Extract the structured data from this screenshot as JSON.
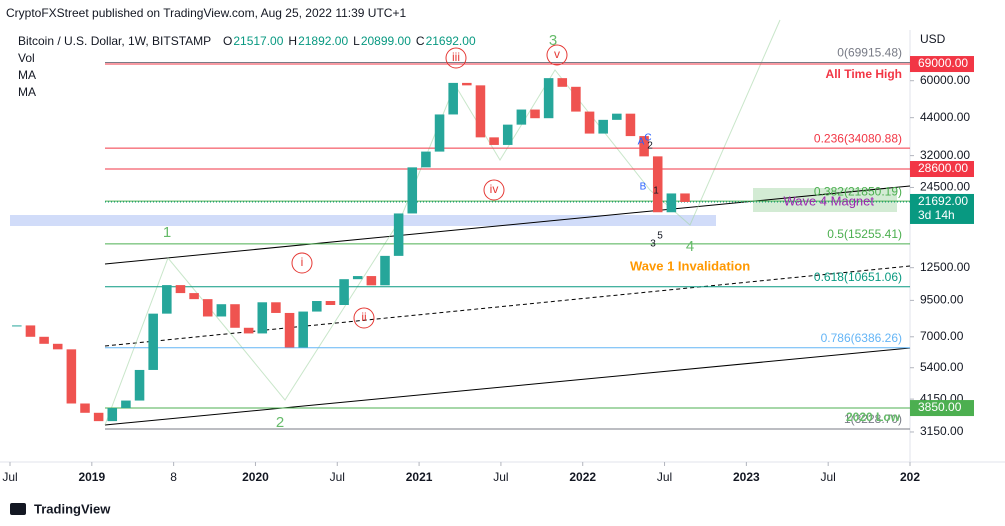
{
  "header": {
    "publisher": "CryptoFXStreet published on TradingView.com, Aug 25, 2022 11:39 UTC+1",
    "brand": "TradingView"
  },
  "chart_data": {
    "type": "candlestick",
    "title": "Bitcoin / U.S. Dollar, 1W, BITSTAMP",
    "ohlc": [
      {
        "label": "O",
        "value": "21517.00"
      },
      {
        "label": "H",
        "value": "21892.00"
      },
      {
        "label": "L",
        "value": "20899.00"
      },
      {
        "label": "C",
        "value": "21692.00"
      }
    ],
    "indicators": [
      "Vol",
      "MA",
      "MA"
    ],
    "currency": "USD",
    "log_scale": true,
    "grid": false,
    "up_color": "#26a69a",
    "down_color": "#ef5350",
    "x": [
      "2018-07",
      "2018-08",
      "2018-09",
      "2018-10",
      "2018-11",
      "2018-12",
      "2019-01",
      "2019-02",
      "2019-03",
      "2019-04",
      "2019-05",
      "2019-06",
      "2019-07",
      "2019-08",
      "2019-09",
      "2019-10",
      "2019-11",
      "2019-12",
      "2020-01",
      "2020-02",
      "2020-03",
      "2020-04",
      "2020-05",
      "2020-06",
      "2020-07",
      "2020-08",
      "2020-09",
      "2020-10",
      "2020-11",
      "2020-12",
      "2021-01",
      "2021-02",
      "2021-03",
      "2021-04",
      "2021-05",
      "2021-06",
      "2021-07",
      "2021-08",
      "2021-09",
      "2021-10",
      "2021-11",
      "2021-12",
      "2022-01",
      "2022-02",
      "2022-03",
      "2022-04",
      "2022-05",
      "2022-06",
      "2022-07",
      "2022-08"
    ],
    "values": [
      7700,
      7000,
      6600,
      6300,
      4000,
      3700,
      3450,
      3850,
      4100,
      5300,
      8500,
      10800,
      10100,
      9600,
      8300,
      9200,
      7550,
      7200,
      9350,
      8550,
      6400,
      8650,
      9450,
      9140,
      11350,
      11650,
      10780,
      13800,
      19700,
      29000,
      33100,
      45200,
      58900,
      57700,
      37300,
      35000,
      41500,
      47100,
      43800,
      61300,
      57000,
      46300,
      38500,
      43200,
      45500,
      37700,
      31800,
      19900,
      23300,
      21692
    ],
    "xlim": [
      "2018-07",
      "2023-12"
    ],
    "xticks": [
      {
        "value": "2018-07",
        "label": "Jul"
      },
      {
        "value": "2019-01",
        "label": "2019"
      },
      {
        "value": "2019-07",
        "label": "8"
      },
      {
        "value": "2020-01",
        "label": "2020"
      },
      {
        "value": "2020-07",
        "label": "Jul"
      },
      {
        "value": "2021-01",
        "label": "2021"
      },
      {
        "value": "2021-07",
        "label": "Jul"
      },
      {
        "value": "2022-01",
        "label": "2022"
      },
      {
        "value": "2022-07",
        "label": "Jul"
      },
      {
        "value": "2023-01",
        "label": "2023"
      },
      {
        "value": "2023-07",
        "label": "Jul"
      },
      {
        "value": "2024-01",
        "label": "202"
      }
    ],
    "ylim": [
      2490,
      91800
    ],
    "yticks": [
      {
        "value": 60000,
        "label": "60000.00"
      },
      {
        "value": 44000,
        "label": "44000.00"
      },
      {
        "value": 32000,
        "label": "32000.00"
      },
      {
        "value": 24500,
        "label": "24500.00"
      },
      {
        "value": 12500,
        "label": "12500.00"
      },
      {
        "value": 9500,
        "label": "9500.00"
      },
      {
        "value": 7000,
        "label": "7000.00"
      },
      {
        "value": 5400,
        "label": "5400.00"
      },
      {
        "value": 4150,
        "label": "4150.00"
      },
      {
        "value": 3150,
        "label": "3150.00"
      }
    ],
    "fib": [
      {
        "label": "0(69915.48)",
        "value": 69915.48,
        "color": "#787b86"
      },
      {
        "label": "0.236(34080.88)",
        "value": 34080.88,
        "color": "#f23645"
      },
      {
        "label": "0.382(21850.19)",
        "value": 21850.19,
        "color": "#4caf50"
      },
      {
        "label": "0.5(15255.41)",
        "value": 15255.41,
        "color": "#4caf50"
      },
      {
        "label": "0.618(10651.06)",
        "value": 10651.06,
        "color": "#089981"
      },
      {
        "label": "0.786(6386.26)",
        "value": 6386.26,
        "color": "#64b5f6"
      },
      {
        "label": "1(3228.70)",
        "value": 3228.7,
        "color": "#787b86"
      }
    ],
    "tags": [
      {
        "value": 69000,
        "label": "69000.00",
        "color": "#f23645"
      },
      {
        "value": 28600,
        "label": "28600.00",
        "color": "#f23645"
      },
      {
        "value": 21692,
        "label": "21692.00",
        "sub": "3d 14h",
        "color": "#089981"
      },
      {
        "value": 3850,
        "label": "3850.00",
        "color": "#4caf50"
      }
    ],
    "annotations": {
      "ath": "All Time High",
      "magnet": "Wave 4 Magnet",
      "invalid": "Wave 1 Invalidation",
      "low": "2020 Low"
    },
    "waves": [
      "1",
      "2",
      "3",
      "4",
      "i",
      "ii",
      "iii",
      "iv",
      "v",
      "A",
      "B",
      "C",
      "1",
      "2",
      "3",
      "5"
    ]
  }
}
